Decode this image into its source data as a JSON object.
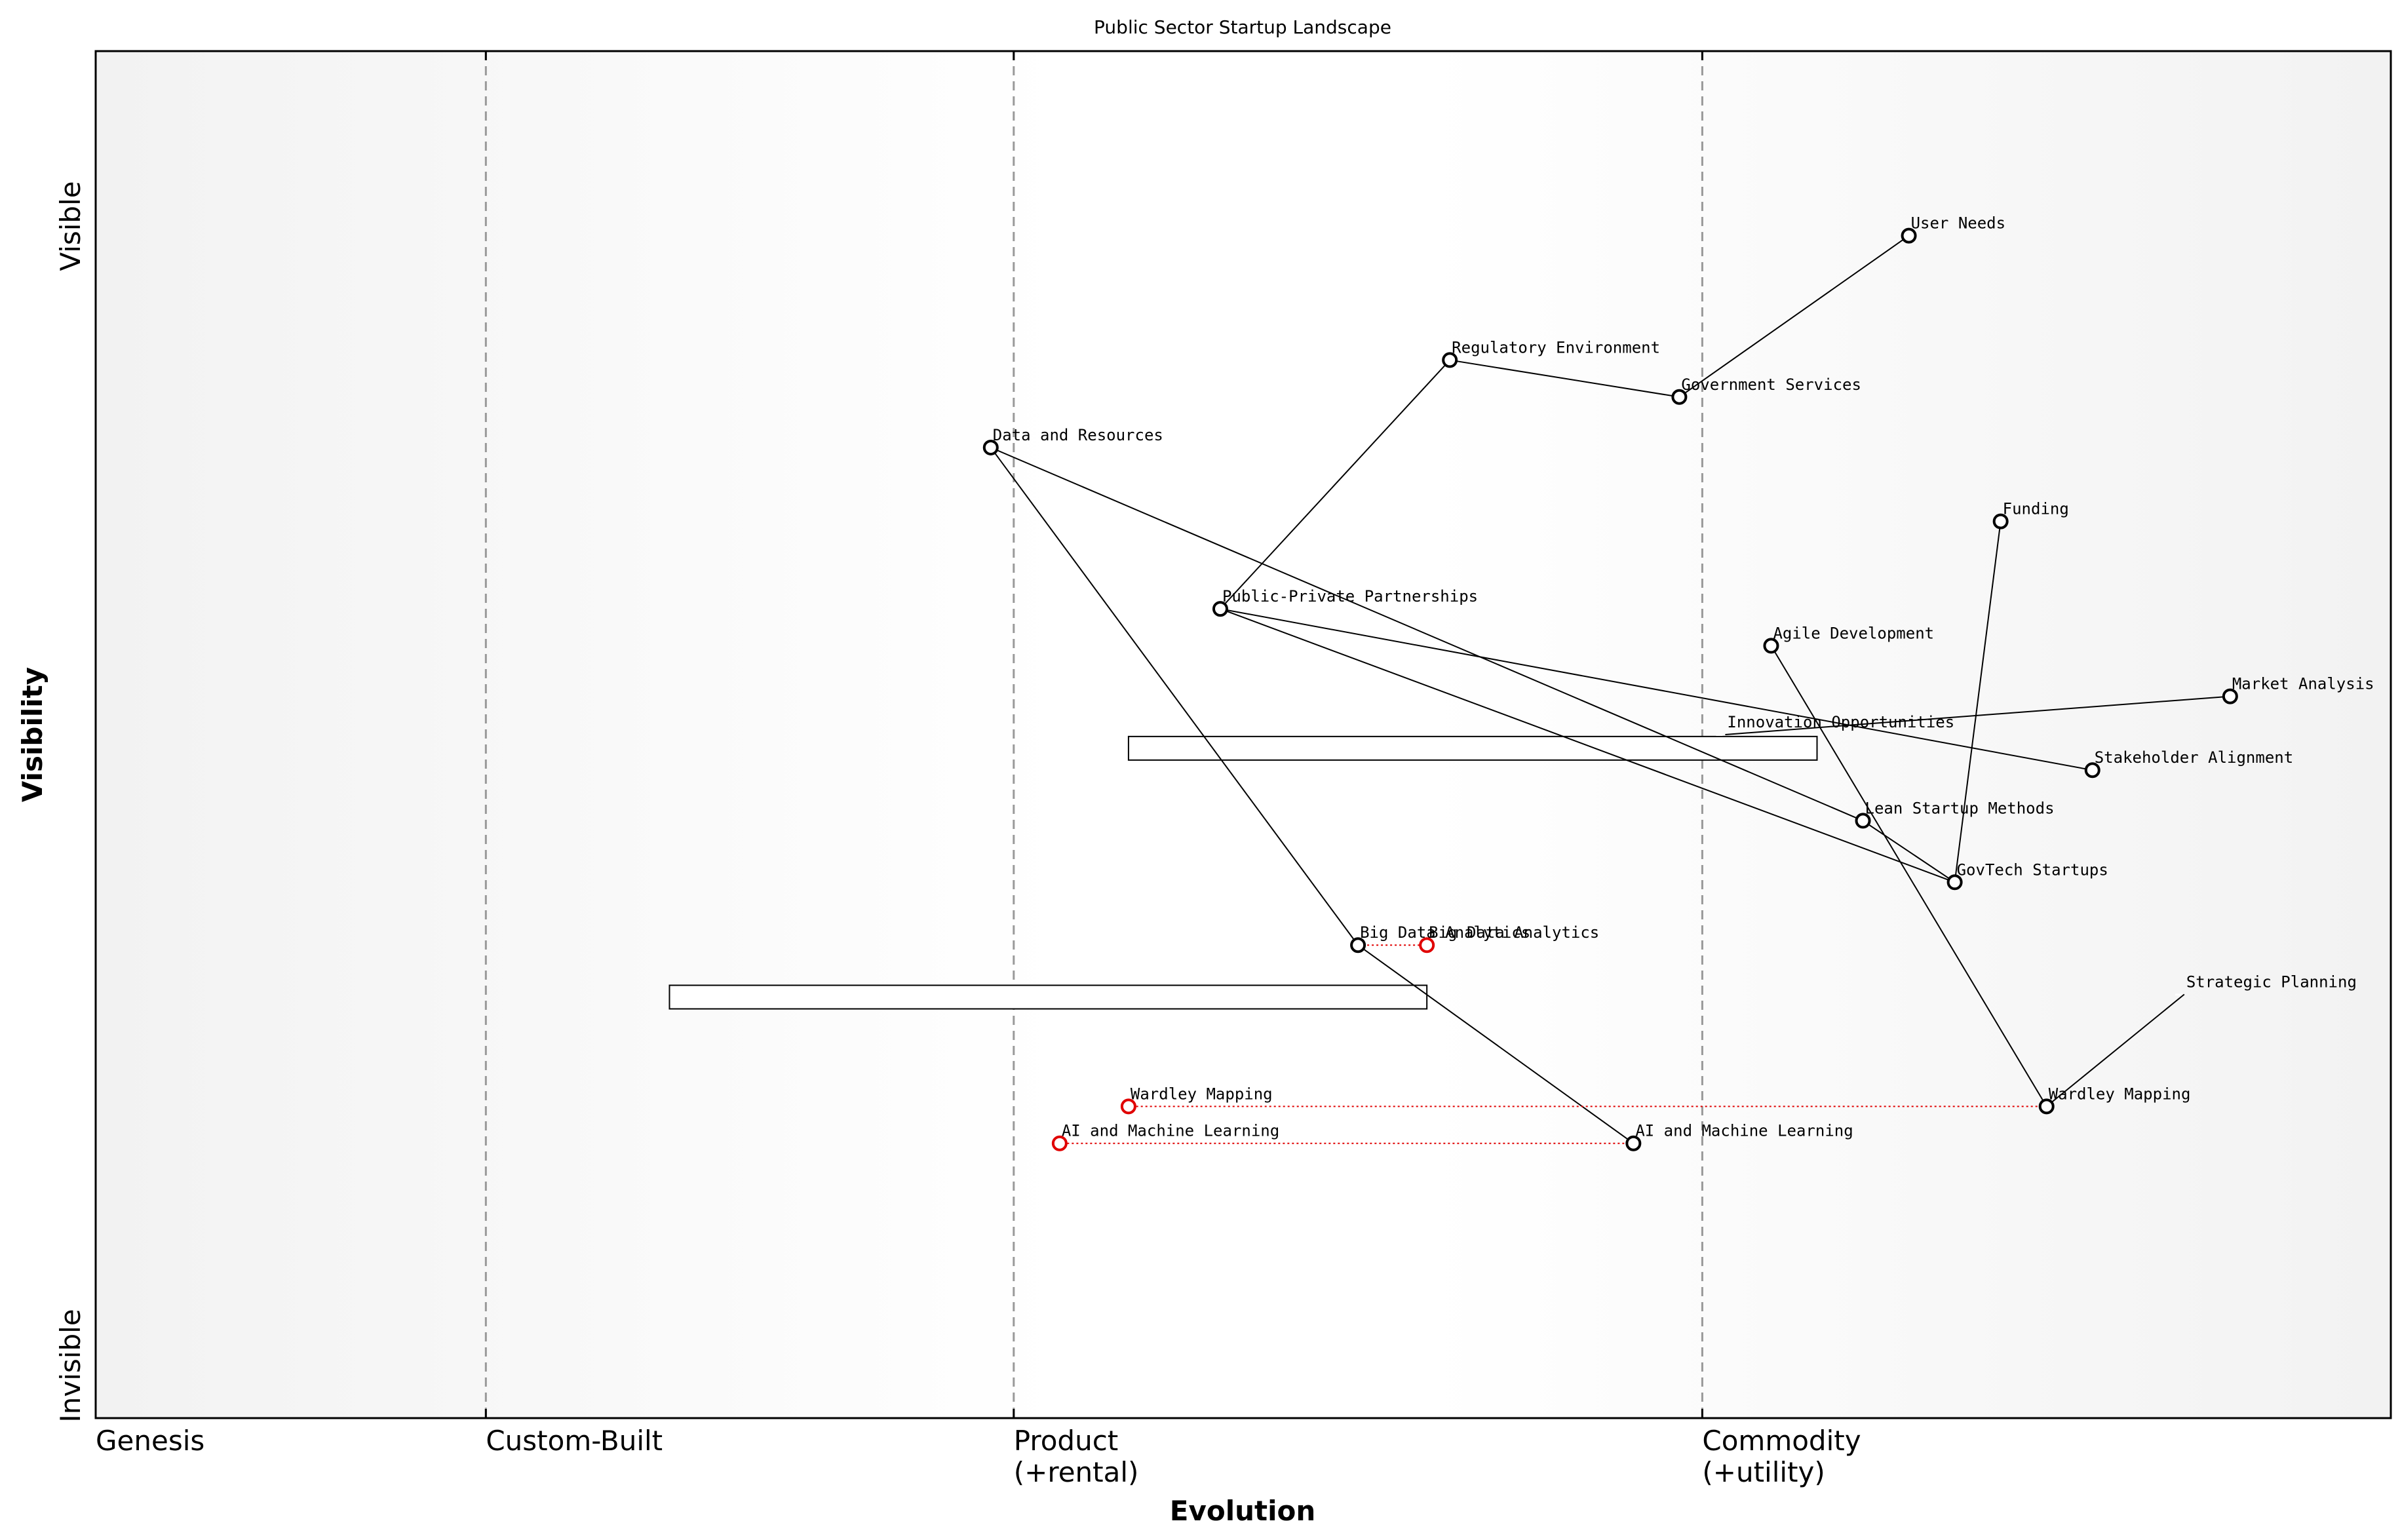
{
  "title": "Public Sector Startup Landscape",
  "x_axis_label": "Evolution",
  "y_axis_label": "Visibility",
  "y_top_label": "Visible",
  "y_bottom_label": "Invisible",
  "stages": [
    {
      "line1": "Genesis",
      "line2": "",
      "at": 0.0
    },
    {
      "line1": "Custom-Built",
      "line2": "",
      "at": 0.17
    },
    {
      "line1": "Product",
      "line2": "(+rental)",
      "at": 0.4
    },
    {
      "line1": "Commodity",
      "line2": "(+utility)",
      "at": 0.7
    }
  ],
  "colors": {
    "node_stroke": "#000000",
    "evolved_node_stroke": "#e00000",
    "evolve_line": "#e00000",
    "stage_divider": "#999999",
    "background_edge": "#f2f2f2",
    "background_center": "#ffffff"
  },
  "chart_data": {
    "type": "wardley-map",
    "x_range": [
      0,
      1
    ],
    "y_range": [
      0,
      1
    ],
    "components": [
      {
        "id": "user-needs",
        "name": "User Needs",
        "evolution": 0.79,
        "visibility": 0.865,
        "marker": true
      },
      {
        "id": "regulatory-environment",
        "name": "Regulatory Environment",
        "evolution": 0.59,
        "visibility": 0.774,
        "marker": true
      },
      {
        "id": "government-services",
        "name": "Government Services",
        "evolution": 0.69,
        "visibility": 0.747,
        "marker": true
      },
      {
        "id": "data-and-resources",
        "name": "Data and Resources",
        "evolution": 0.39,
        "visibility": 0.71,
        "marker": true
      },
      {
        "id": "funding",
        "name": "Funding",
        "evolution": 0.83,
        "visibility": 0.656,
        "marker": true
      },
      {
        "id": "public-private-partnerships",
        "name": "Public-Private Partnerships",
        "evolution": 0.49,
        "visibility": 0.592,
        "marker": true
      },
      {
        "id": "agile-development",
        "name": "Agile Development",
        "evolution": 0.73,
        "visibility": 0.565,
        "marker": true
      },
      {
        "id": "market-analysis",
        "name": "Market Analysis",
        "evolution": 0.93,
        "visibility": 0.528,
        "marker": true
      },
      {
        "id": "innovation-opportunities",
        "name": "Innovation Opportunities",
        "evolution": 0.71,
        "visibility": 0.5,
        "marker": false
      },
      {
        "id": "stakeholder-alignment",
        "name": "Stakeholder Alignment",
        "evolution": 0.87,
        "visibility": 0.474,
        "marker": true
      },
      {
        "id": "lean-startup-methods",
        "name": "Lean Startup Methods",
        "evolution": 0.77,
        "visibility": 0.437,
        "marker": true
      },
      {
        "id": "govtech-startups",
        "name": "GovTech Startups",
        "evolution": 0.81,
        "visibility": 0.392,
        "marker": true
      },
      {
        "id": "big-data-analytics",
        "name": "Big Data Analytics",
        "evolution": 0.55,
        "visibility": 0.346,
        "marker": true
      },
      {
        "id": "strategic-planning",
        "name": "Strategic Planning",
        "evolution": 0.91,
        "visibility": 0.31,
        "marker": false
      },
      {
        "id": "wardley-mapping",
        "name": "Wardley Mapping",
        "evolution": 0.85,
        "visibility": 0.228,
        "marker": true
      },
      {
        "id": "ai-and-machine-learning",
        "name": "AI and Machine Learning",
        "evolution": 0.67,
        "visibility": 0.201,
        "marker": true
      }
    ],
    "evolved_components": [
      {
        "name": "Big Data Analytics",
        "from_evolution": 0.55,
        "evolution": 0.58,
        "visibility": 0.346
      },
      {
        "name": "Wardley Mapping",
        "from_evolution": 0.85,
        "evolution": 0.45,
        "visibility": 0.228
      },
      {
        "name": "AI and Machine Learning",
        "from_evolution": 0.67,
        "evolution": 0.42,
        "visibility": 0.201
      }
    ],
    "links": [
      [
        "user-needs",
        "government-services"
      ],
      [
        "government-services",
        "regulatory-environment"
      ],
      [
        "regulatory-environment",
        "public-private-partnerships"
      ],
      [
        "public-private-partnerships",
        "govtech-startups"
      ],
      [
        "public-private-partnerships",
        "stakeholder-alignment"
      ],
      [
        "data-and-resources",
        "big-data-analytics"
      ],
      [
        "data-and-resources",
        "lean-startup-methods"
      ],
      [
        "big-data-analytics",
        "ai-and-machine-learning"
      ],
      [
        "funding",
        "govtech-startups"
      ],
      [
        "lean-startup-methods",
        "govtech-startups"
      ],
      [
        "agile-development",
        "wardley-mapping"
      ],
      [
        "wardley-mapping",
        "strategic-planning"
      ],
      [
        "market-analysis",
        "innovation-opportunities"
      ]
    ],
    "pipelines": [
      {
        "evolution_start": 0.45,
        "evolution_end": 0.75,
        "visibility": 0.49
      },
      {
        "evolution_start": 0.25,
        "evolution_end": 0.58,
        "visibility": 0.308
      }
    ]
  }
}
